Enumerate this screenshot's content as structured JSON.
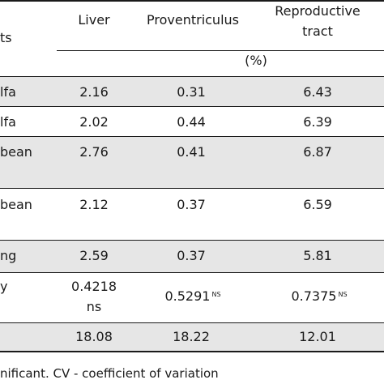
{
  "table": {
    "headers": {
      "left_fragment": "ts",
      "liver": "Liver",
      "proventriculus": "Proventriculus",
      "reproductive_line1": "Reproductive",
      "reproductive_line2": "tract",
      "unit": "(%)"
    },
    "rows": [
      {
        "label": "lfa",
        "liver": "2.16",
        "proventriculus": "0.31",
        "reproductive": "6.43"
      },
      {
        "label": "lfa",
        "liver": "2.02",
        "proventriculus": "0.44",
        "reproductive": "6.39"
      },
      {
        "label": "bean",
        "liver": "2.76",
        "proventriculus": "0.41",
        "reproductive": "6.87"
      },
      {
        "label": "bean",
        "liver": "2.12",
        "proventriculus": "0.37",
        "reproductive": "6.59"
      },
      {
        "label": "ng",
        "liver": "2.59",
        "proventriculus": "0.37",
        "reproductive": "5.81"
      }
    ],
    "stats_row": {
      "label": "y",
      "liver_line1": "0.4218",
      "liver_line2": "ns",
      "proventriculus": "0.5291",
      "proventriculus_sup": "NS",
      "reproductive": "0.7375",
      "reproductive_sup": "NS"
    },
    "cv_row": {
      "label": "",
      "liver": "18.08",
      "proventriculus": "18.22",
      "reproductive": "12.01"
    }
  },
  "footnote": "nificant. CV - coefficient of variation"
}
